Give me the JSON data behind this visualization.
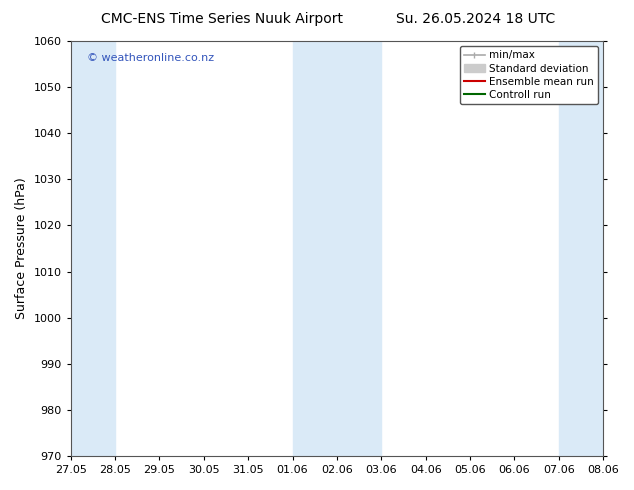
{
  "title_left": "CMC-ENS Time Series Nuuk Airport",
  "title_right": "Su. 26.05.2024 18 UTC",
  "ylabel": "Surface Pressure (hPa)",
  "ylim": [
    970,
    1060
  ],
  "yticks": [
    970,
    980,
    990,
    1000,
    1010,
    1020,
    1030,
    1040,
    1050,
    1060
  ],
  "xtick_labels": [
    "27.05",
    "28.05",
    "29.05",
    "30.05",
    "31.05",
    "01.06",
    "02.06",
    "03.06",
    "04.06",
    "05.06",
    "06.06",
    "07.06",
    "08.06"
  ],
  "xlim_start": 0,
  "xlim_end": 12,
  "shaded_regions": [
    {
      "x_start": 0,
      "x_end": 1
    },
    {
      "x_start": 5,
      "x_end": 7
    },
    {
      "x_start": 11,
      "x_end": 12
    }
  ],
  "shaded_color": "#daeaf7",
  "watermark_text": "© weatheronline.co.nz",
  "watermark_color": "#3355bb",
  "legend_items": [
    {
      "label": "min/max",
      "color": "#aaaaaa",
      "lw": 1.2
    },
    {
      "label": "Standard deviation",
      "color": "#cccccc",
      "lw": 6
    },
    {
      "label": "Ensemble mean run",
      "color": "#cc0000",
      "lw": 1.5
    },
    {
      "label": "Controll run",
      "color": "#006600",
      "lw": 1.5
    }
  ],
  "background_color": "#ffffff",
  "spine_color": "#555555",
  "title_fontsize": 10,
  "ylabel_fontsize": 9,
  "tick_fontsize": 8,
  "legend_fontsize": 7.5,
  "watermark_fontsize": 8
}
